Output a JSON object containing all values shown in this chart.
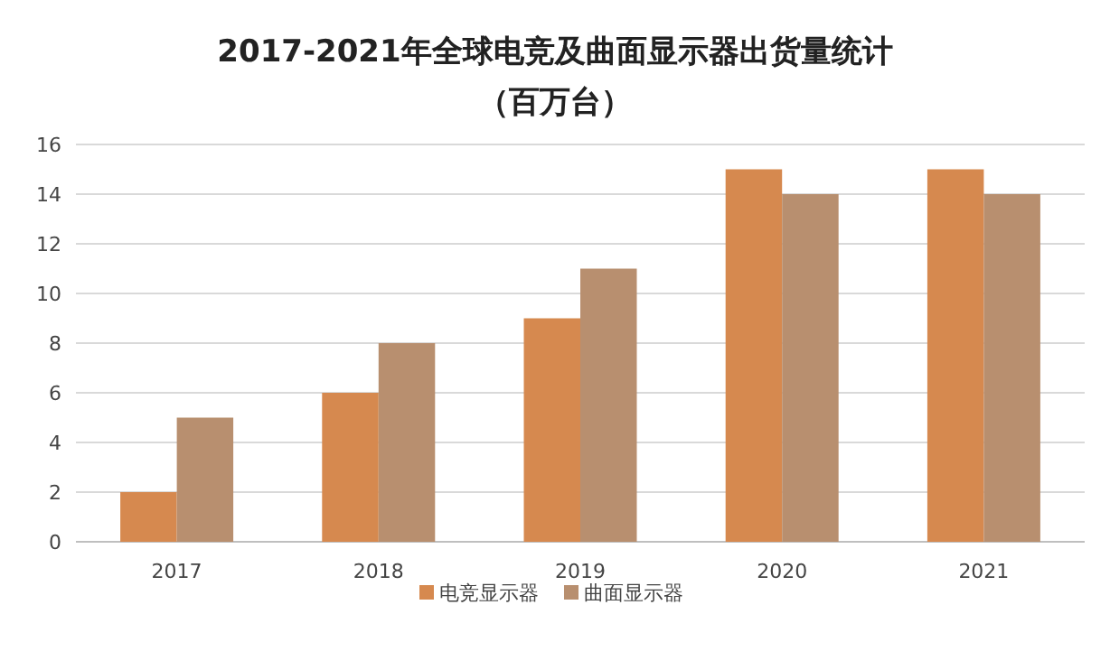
{
  "chart_data": {
    "type": "bar",
    "title": "2017-2021年全球电竞及曲面显示器出货量统计",
    "subtitle": "（百万台）",
    "categories": [
      "2017",
      "2018",
      "2019",
      "2020",
      "2021"
    ],
    "series": [
      {
        "name": "电竞显示器",
        "color": "#d6894f",
        "values": [
          2,
          6,
          9,
          15,
          15
        ]
      },
      {
        "name": "曲面显示器",
        "color": "#b88f6f",
        "values": [
          5,
          8,
          11,
          14,
          14
        ]
      }
    ],
    "ylim": [
      0,
      16
    ],
    "yticks": [
      0,
      2,
      4,
      6,
      8,
      10,
      12,
      14,
      16
    ],
    "grid": "y",
    "legend": "bottom"
  }
}
